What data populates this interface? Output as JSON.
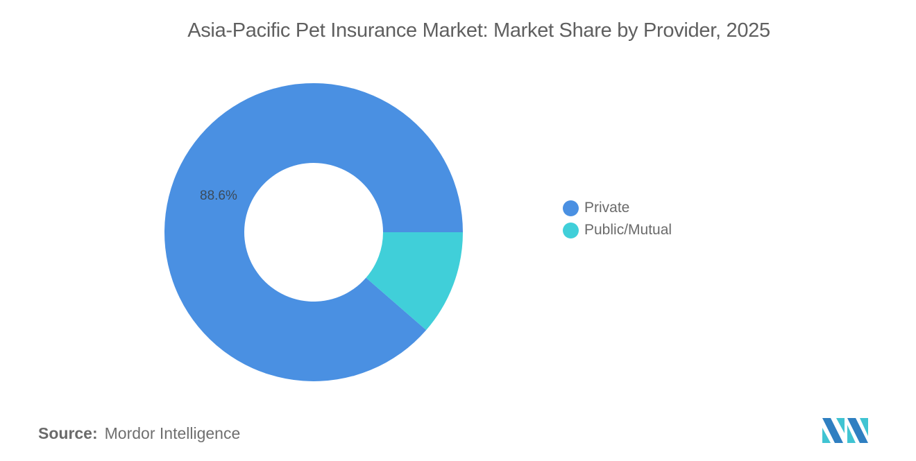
{
  "title": "Asia-Pacific Pet Insurance Market: Market Share by Provider, 2025",
  "source": {
    "key": "Source:",
    "value": "Mordor Intelligence"
  },
  "colors": {
    "private": "#4a90e2",
    "public_mutual": "#40cfd9",
    "background": "#ffffff",
    "title_text": "#5f5f5f"
  },
  "labels": {
    "private_pct": "88.6%"
  },
  "legend": [
    {
      "label": "Private",
      "color": "#4a90e2"
    },
    {
      "label": "Public/Mutual",
      "color": "#40cfd9"
    }
  ],
  "logo": {
    "name": "mordor-intelligence-logo"
  },
  "chart_data": {
    "type": "pie",
    "subtype": "donut",
    "title": "Asia-Pacific Pet Insurance Market: Market Share by Provider, 2025",
    "categories": [
      "Private",
      "Public/Mutual"
    ],
    "values": [
      88.6,
      11.4
    ],
    "units": "%",
    "data_labels": [
      "88.6%",
      ""
    ],
    "colors": [
      "#4a90e2",
      "#40cfd9"
    ],
    "legend_position": "right",
    "start_angle_deg": 0,
    "direction": "clockwise",
    "source": "Mordor Intelligence"
  }
}
